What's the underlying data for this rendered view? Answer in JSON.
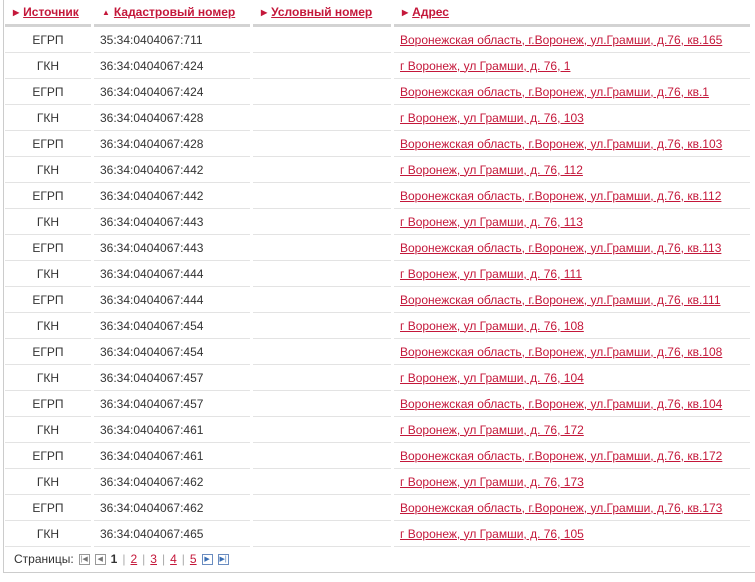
{
  "headers": [
    {
      "label": "Источник",
      "arrow": "▶"
    },
    {
      "label": "Кадастровый номер",
      "arrow": "▲"
    },
    {
      "label": "Условный номер",
      "arrow": "▶"
    },
    {
      "label": "Адрес",
      "arrow": "▶"
    }
  ],
  "rows": [
    [
      "ЕГРП",
      "35:34:0404067:711",
      "",
      "Воронежская область, г.Воронеж, ул.Грамши, д.76, кв.165"
    ],
    [
      "ГКН",
      "36:34:0404067:424",
      "",
      "г Воронеж, ул Грамши, д. 76, 1"
    ],
    [
      "ЕГРП",
      "36:34:0404067:424",
      "",
      "Воронежская область, г.Воронеж, ул.Грамши, д.76, кв.1"
    ],
    [
      "ГКН",
      "36:34:0404067:428",
      "",
      "г Воронеж, ул Грамши, д. 76, 103"
    ],
    [
      "ЕГРП",
      "36:34:0404067:428",
      "",
      "Воронежская область, г.Воронеж, ул.Грамши, д.76, кв.103"
    ],
    [
      "ГКН",
      "36:34:0404067:442",
      "",
      "г Воронеж, ул Грамши, д. 76, 112"
    ],
    [
      "ЕГРП",
      "36:34:0404067:442",
      "",
      "Воронежская область, г.Воронеж, ул.Грамши, д.76, кв.112"
    ],
    [
      "ГКН",
      "36:34:0404067:443",
      "",
      "г Воронеж, ул Грамши, д. 76, 113"
    ],
    [
      "ЕГРП",
      "36:34:0404067:443",
      "",
      "Воронежская область, г.Воронеж, ул.Грамши, д.76, кв.113"
    ],
    [
      "ГКН",
      "36:34:0404067:444",
      "",
      "г Воронеж, ул Грамши, д. 76, 111"
    ],
    [
      "ЕГРП",
      "36:34:0404067:444",
      "",
      "Воронежская область, г.Воронеж, ул.Грамши, д.76, кв.111"
    ],
    [
      "ГКН",
      "36:34:0404067:454",
      "",
      "г Воронеж, ул Грамши, д. 76, 108"
    ],
    [
      "ЕГРП",
      "36:34:0404067:454",
      "",
      "Воронежская область, г.Воронеж, ул.Грамши, д.76, кв.108"
    ],
    [
      "ГКН",
      "36:34:0404067:457",
      "",
      "г Воронеж, ул Грамши, д. 76, 104"
    ],
    [
      "ЕГРП",
      "36:34:0404067:457",
      "",
      "Воронежская область, г.Воронеж, ул.Грамши, д.76, кв.104"
    ],
    [
      "ГКН",
      "36:34:0404067:461",
      "",
      "г Воронеж, ул Грамши, д. 76, 172"
    ],
    [
      "ЕГРП",
      "36:34:0404067:461",
      "",
      "Воронежская область, г.Воронеж, ул.Грамши, д.76, кв.172"
    ],
    [
      "ГКН",
      "36:34:0404067:462",
      "",
      "г Воронеж, ул Грамши, д. 76, 173"
    ],
    [
      "ЕГРП",
      "36:34:0404067:462",
      "",
      "Воронежская область, г.Воронеж, ул.Грамши, д.76, кв.173"
    ],
    [
      "ГКН",
      "36:34:0404067:465",
      "",
      "г Воронеж, ул Грамши, д. 76, 105"
    ]
  ],
  "pager": {
    "label": "Страницы:",
    "current": "1",
    "pages": [
      "2",
      "3",
      "4",
      "5"
    ],
    "separator": "|"
  },
  "colors": {
    "link": "#c4173a"
  }
}
